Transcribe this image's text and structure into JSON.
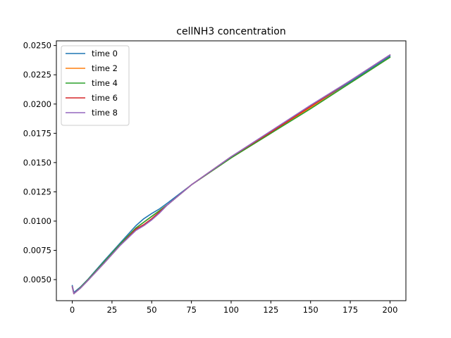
{
  "chart_data": {
    "type": "line",
    "title": "cellNH3 concentration",
    "xlabel": "",
    "ylabel": "",
    "xlim": [
      -10,
      210
    ],
    "ylim": [
      0.0032,
      0.0254
    ],
    "xticks": [
      0,
      25,
      50,
      75,
      100,
      125,
      150,
      175,
      200
    ],
    "xtick_labels": [
      "0",
      "25",
      "50",
      "75",
      "100",
      "125",
      "150",
      "175",
      "200"
    ],
    "yticks": [
      0.005,
      0.0075,
      0.01,
      0.0125,
      0.015,
      0.0175,
      0.02,
      0.0225,
      0.025
    ],
    "ytick_labels": [
      "0.0050",
      "0.0075",
      "0.0100",
      "0.0125",
      "0.0150",
      "0.0175",
      "0.0200",
      "0.0225",
      "0.0250"
    ],
    "grid": false,
    "legend_position": "top-left",
    "x": [
      0,
      1,
      5,
      10,
      20,
      30,
      40,
      45,
      50,
      55,
      60,
      75,
      100,
      125,
      150,
      175,
      200
    ],
    "series": [
      {
        "name": "time 0",
        "color": "#1f77b4",
        "values": [
          0.0045,
          0.0039,
          0.00435,
          0.00505,
          0.0066,
          0.0081,
          0.0096,
          0.0102,
          0.01065,
          0.01105,
          0.01155,
          0.0131,
          0.0154,
          0.0176,
          0.0198,
          0.0219,
          0.0241
        ]
      },
      {
        "name": "time 2",
        "color": "#ff7f0e",
        "values": [
          0.0044,
          0.0038,
          0.0043,
          0.005,
          0.0065,
          0.008,
          0.0094,
          0.0099,
          0.0104,
          0.0109,
          0.0114,
          0.0131,
          0.0154,
          0.0175,
          0.0197,
          0.0218,
          0.024
        ]
      },
      {
        "name": "time 4",
        "color": "#2ca02c",
        "values": [
          0.0044,
          0.0038,
          0.0043,
          0.005,
          0.0065,
          0.008,
          0.0094,
          0.0099,
          0.0104,
          0.0109,
          0.0114,
          0.0131,
          0.0154,
          0.0175,
          0.0196,
          0.0218,
          0.024
        ]
      },
      {
        "name": "time 6",
        "color": "#d62728",
        "values": [
          0.0044,
          0.0038,
          0.00425,
          0.00495,
          0.0064,
          0.0079,
          0.0093,
          0.0097,
          0.0102,
          0.0108,
          0.0114,
          0.0131,
          0.0155,
          0.0176,
          0.0198,
          0.022,
          0.0242
        ]
      },
      {
        "name": "time 8",
        "color": "#9467bd",
        "values": [
          0.0044,
          0.0038,
          0.00425,
          0.00495,
          0.0064,
          0.0079,
          0.0092,
          0.0096,
          0.0101,
          0.0107,
          0.0114,
          0.0131,
          0.0155,
          0.0177,
          0.0199,
          0.022,
          0.0242
        ]
      }
    ]
  }
}
